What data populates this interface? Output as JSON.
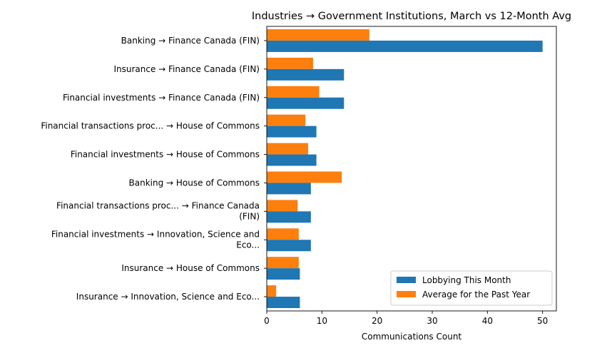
{
  "chart_data": {
    "type": "bar",
    "orientation": "horizontal",
    "title": "Industries → Government Institutions, March vs 12-Month Avg",
    "xlabel": "Communications Count",
    "ylabel": "",
    "xlim": [
      0,
      52.5
    ],
    "xticks": [
      0,
      10,
      20,
      30,
      40,
      50
    ],
    "grid": false,
    "legend_position": "lower-right",
    "categories": [
      [
        "Banking → Finance Canada (FIN)"
      ],
      [
        "Insurance → Finance Canada (FIN)"
      ],
      [
        "Financial investments → Finance Canada (FIN)"
      ],
      [
        "Financial transactions proc... → House of Commons"
      ],
      [
        "Financial investments → House of Commons"
      ],
      [
        "Banking → House of Commons"
      ],
      [
        "Financial transactions proc... → Finance Canada",
        "(FIN)"
      ],
      [
        "Financial investments → Innovation, Science and",
        "Eco..."
      ],
      [
        "Insurance → House of Commons"
      ],
      [
        "Insurance → Innovation, Science and Eco..."
      ]
    ],
    "series": [
      {
        "name": "Lobbying This Month",
        "color": "#1f77b4",
        "values": [
          50,
          14,
          14,
          9,
          9,
          8,
          8,
          8,
          6,
          6
        ]
      },
      {
        "name": "Average for the Past Year",
        "color": "#ff7f0e",
        "values": [
          18.6,
          8.4,
          9.5,
          7,
          7.5,
          13.6,
          5.6,
          5.8,
          5.8,
          1.7
        ]
      }
    ]
  }
}
